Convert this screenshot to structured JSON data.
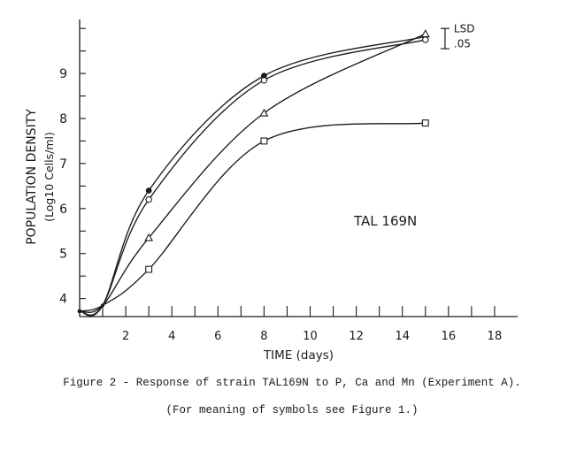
{
  "chart_data": {
    "type": "line",
    "title": "",
    "xlabel": "TIME (days)",
    "ylabel": "POPULATION DENSITY",
    "ylabel_units": "(Log10 Cells/ml)",
    "xlim": [
      0,
      19
    ],
    "ylim": [
      3.6,
      10.2
    ],
    "x_ticks": [
      2,
      4,
      6,
      8,
      10,
      12,
      14,
      16,
      18
    ],
    "y_ticks": [
      4,
      5,
      6,
      7,
      8,
      9
    ],
    "annotation": "TAL 169N",
    "lsd_label": [
      "LSD",
      ".05"
    ],
    "lsd_range": [
      9.55,
      10.0
    ],
    "series": [
      {
        "marker": "filled-dot",
        "x": [
          0,
          1,
          3,
          8,
          15
        ],
        "y": [
          3.72,
          3.85,
          6.4,
          8.95,
          9.82
        ]
      },
      {
        "marker": "open-circle",
        "x": [
          0,
          1,
          3,
          8,
          15
        ],
        "y": [
          3.72,
          3.85,
          6.2,
          8.85,
          9.75
        ]
      },
      {
        "marker": "triangle",
        "x": [
          0,
          1,
          3,
          8,
          15
        ],
        "y": [
          3.72,
          3.85,
          5.35,
          8.12,
          9.88
        ]
      },
      {
        "marker": "square",
        "x": [
          0,
          1,
          3,
          8,
          15
        ],
        "y": [
          3.72,
          3.85,
          4.65,
          7.5,
          7.9
        ]
      }
    ]
  },
  "caption": {
    "line1": "Figure 2 - Response of strain TAL169N to P, Ca and Mn (Experiment A).",
    "line2": "(For meaning of symbols see Figure 1.)"
  }
}
